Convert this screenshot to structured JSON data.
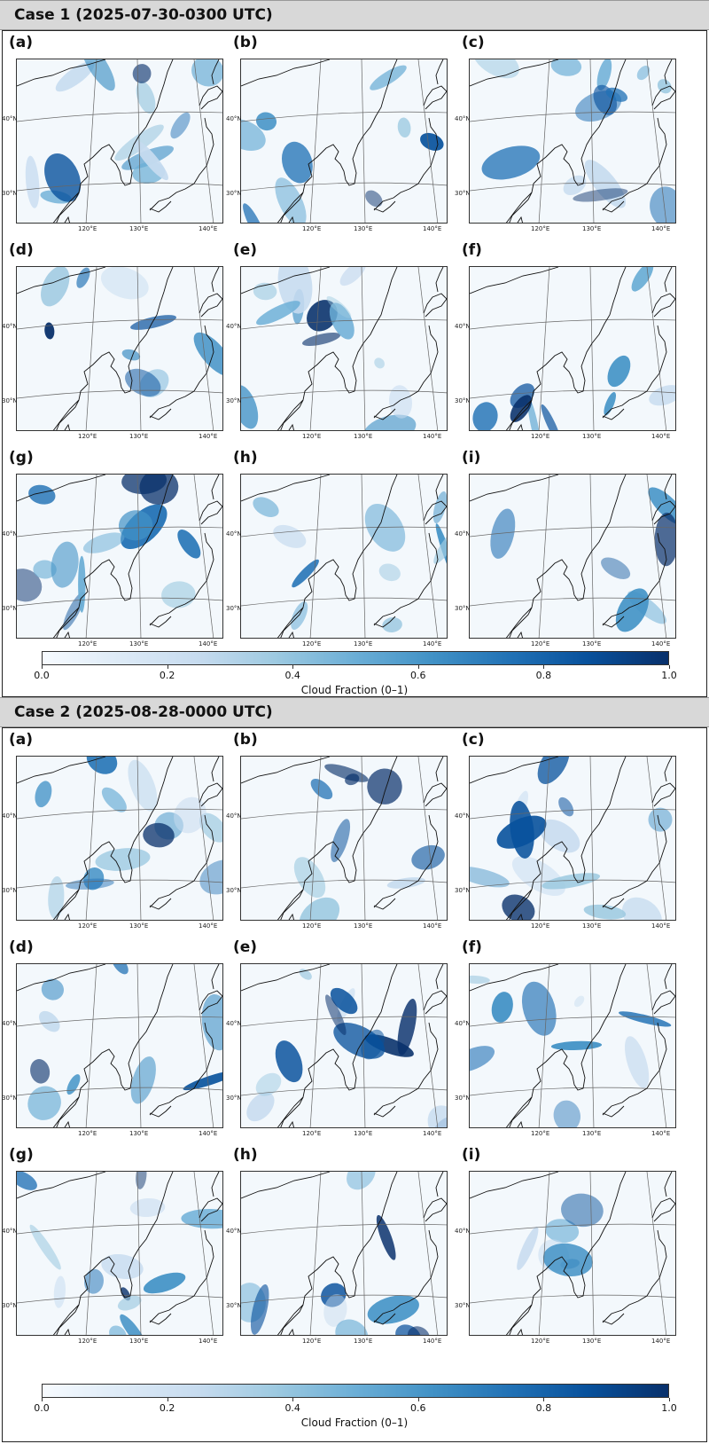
{
  "cases": [
    {
      "title": "Case 1 (2025-07-30-0300 UTC)",
      "panels": [
        "(a)",
        "(b)",
        "(c)",
        "(d)",
        "(e)",
        "(f)",
        "(g)",
        "(h)",
        "(i)"
      ]
    },
    {
      "title": "Case 2 (2025-08-28-0000 UTC)",
      "panels": [
        "(a)",
        "(b)",
        "(c)",
        "(d)",
        "(e)",
        "(f)",
        "(g)",
        "(h)",
        "(i)"
      ]
    }
  ],
  "map_axes": {
    "lat_labels": [
      "40°N",
      "30°N"
    ],
    "lon_labels": [
      "120°E",
      "130°E",
      "140°E"
    ]
  },
  "colorbar": {
    "ticks": [
      "0.0",
      "0.2",
      "0.4",
      "0.6",
      "0.8",
      "1.0"
    ],
    "label": "Cloud Fraction (0–1)",
    "colors": [
      "#f7fbff",
      "#deebf7",
      "#c6dbef",
      "#9ecae1",
      "#6baed6",
      "#4292c6",
      "#2171b5",
      "#08519c",
      "#08306b"
    ]
  }
}
